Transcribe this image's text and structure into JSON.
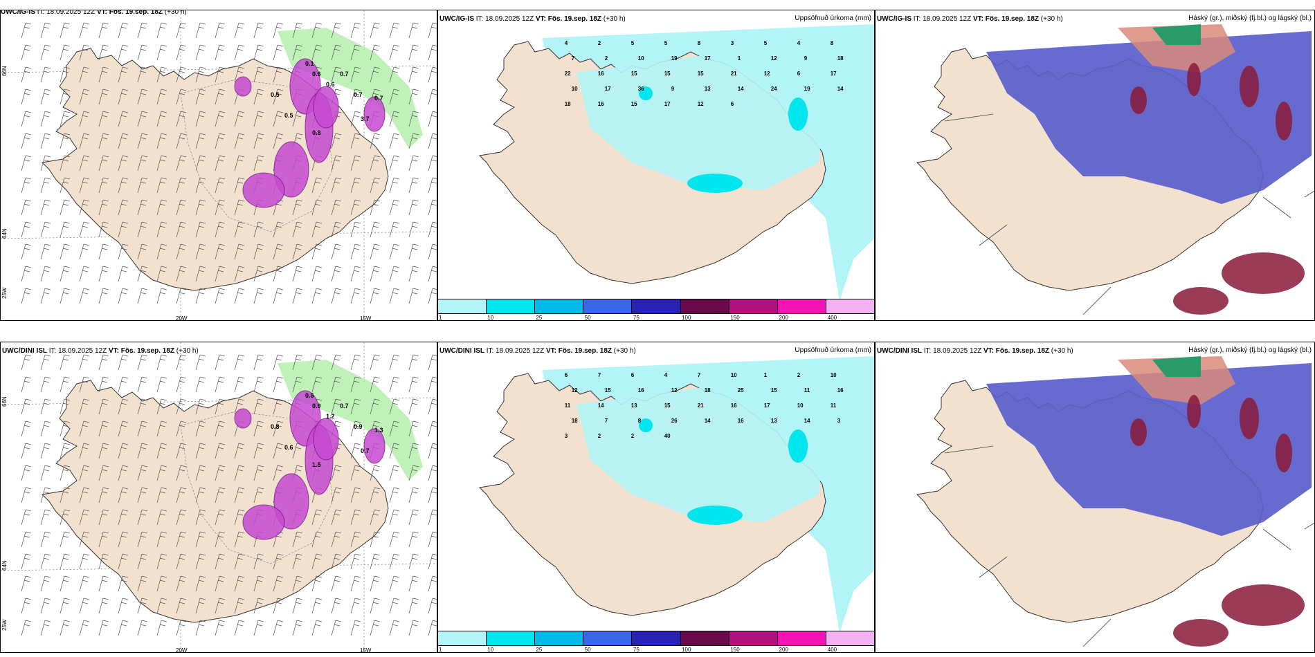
{
  "panels": [
    {
      "model": "UWC/IG-IS",
      "it": "IT: 18.09.2025 12Z",
      "vt_label": "VT:",
      "vt": "Fös. 19.sep. 18Z",
      "lead": "(+30 h)",
      "right": ""
    },
    {
      "model": "UWC/IG-IS",
      "it": "IT: 18.09.2025 12Z",
      "vt_label": "VT:",
      "vt": "Fös. 19.sep. 18Z",
      "lead": "(+30 h)",
      "right": "Uppsöfnuð úrkoma (mm)"
    },
    {
      "model": "UWC/IG-IS",
      "it": "IT: 18.09.2025 12Z",
      "vt_label": "VT:",
      "vt": "Fös. 19.sep. 18Z",
      "lead": "(+30 h)",
      "right": "Háský (gr.), miðský (fj.bl.) og lágský (bl.)"
    },
    {
      "model": "UWC/DINI ISL",
      "it": "IT: 18.09.2025 12Z",
      "vt_label": "VT:",
      "vt": "Fös. 19.sep. 18Z",
      "lead": "(+30 h)",
      "right": ""
    },
    {
      "model": "UWC/DINI ISL",
      "it": "IT: 18.09.2025 12Z",
      "vt_label": "VT:",
      "vt": "Fös. 19.sep. 18Z",
      "lead": "(+30 h)",
      "right": "Uppsöfnuð úrkoma (mm)"
    },
    {
      "model": "UWC/DINI ISL",
      "it": "IT: 18.09.2025 12Z",
      "vt_label": "VT:",
      "vt": "Fös. 19.sep. 18Z",
      "lead": "(+30 h)",
      "right": "Háský (gr.), miðský (fj.bl.) og lágský (bl.)"
    }
  ],
  "coords": {
    "lon_20": "20W",
    "lon_15": "15W",
    "lat_66": "66N",
    "lat_64": "64N",
    "lon_25": "25W"
  },
  "colorbar": {
    "labels": [
      "1",
      "10",
      "25",
      "50",
      "75",
      "100",
      "150",
      "200",
      "400"
    ],
    "colors": [
      "#b3f4f6",
      "#00e6ee",
      "#00bbe8",
      "#3a66e8",
      "#2a22b4",
      "#6a0a4a",
      "#b0127e",
      "#f214b4",
      "#f4b2f2"
    ]
  },
  "precip_top": [
    "4",
    "2",
    "5",
    "5",
    "8",
    "3",
    "5",
    "4",
    "8",
    "7",
    "2",
    "10",
    "19",
    "17",
    "1",
    "12",
    "9",
    "18",
    "22",
    "16",
    "15",
    "15",
    "15",
    "21",
    "12",
    "6",
    "17",
    "10",
    "17",
    "36",
    "9",
    "13",
    "14",
    "24",
    "19",
    "14",
    "18",
    "16",
    "15",
    "17",
    "12",
    "6"
  ],
  "precip_bottom": [
    "6",
    "7",
    "6",
    "4",
    "7",
    "10",
    "1",
    "2",
    "10",
    "12",
    "15",
    "16",
    "12",
    "18",
    "25",
    "15",
    "11",
    "16",
    "11",
    "14",
    "13",
    "15",
    "21",
    "16",
    "17",
    "10",
    "11",
    "18",
    "7",
    "8",
    "26",
    "14",
    "16",
    "13",
    "14",
    "3",
    "3",
    "2",
    "2",
    "40"
  ],
  "snow_top": [
    "0.1",
    "0.6",
    "0.7",
    "0.6",
    "0.5",
    "0.7",
    "0.7",
    "3.7",
    "0.5",
    "0.8"
  ],
  "snow_bottom": [
    "0.6",
    "0.9",
    "0.7",
    "1.2",
    "0.8",
    "0.9",
    "1.3",
    "0.7",
    "0.6",
    "1.5"
  ]
}
